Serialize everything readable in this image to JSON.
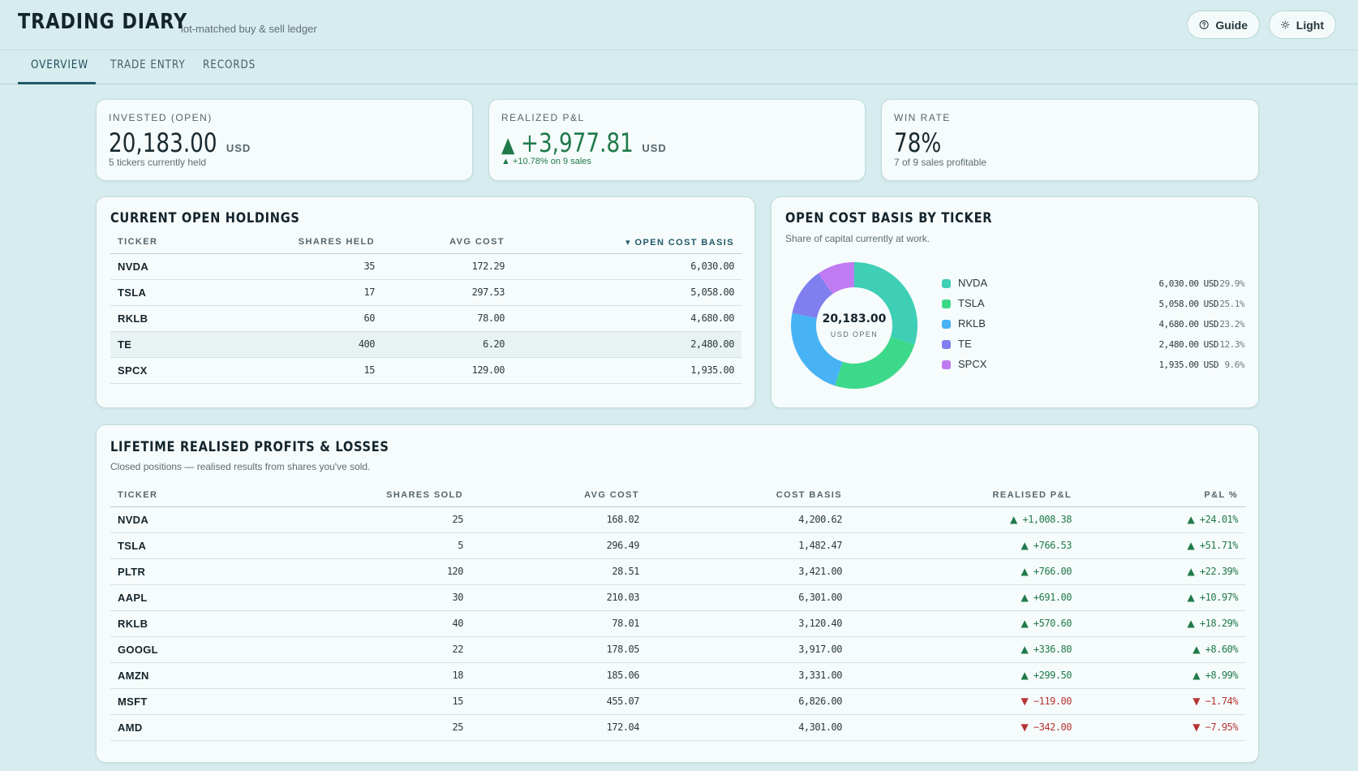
{
  "app": {
    "title": "TRADING DIARY",
    "subtitle": "lot-matched buy & sell ledger"
  },
  "header_buttons": {
    "guide": "Guide",
    "theme": "Light"
  },
  "tabs": [
    {
      "label": "OVERVIEW",
      "active": true
    },
    {
      "label": "TRADE ENTRY",
      "active": false
    },
    {
      "label": "RECORDS",
      "active": false
    }
  ],
  "kpis": {
    "invested": {
      "label": "INVESTED (OPEN)",
      "value": "20,183.00",
      "unit": "USD",
      "sub": "5 tickers currently held"
    },
    "realized": {
      "label": "REALIZED P&L",
      "arrow": "▲",
      "value": "+3,977.81",
      "unit": "USD",
      "sub_arrow": "▲",
      "sub": "+10.78% on 9 sales"
    },
    "winrate": {
      "label": "WIN RATE",
      "value": "78%",
      "sub": "7 of 9 sales profitable"
    }
  },
  "holdings": {
    "title": "CURRENT OPEN HOLDINGS",
    "columns": {
      "ticker": "TICKER",
      "shares": "SHARES HELD",
      "avg": "AVG COST",
      "basis": "▾ OPEN COST BASIS"
    },
    "rows": [
      {
        "ticker": "NVDA",
        "shares": "35",
        "avg": "172.29",
        "basis": "6,030.00"
      },
      {
        "ticker": "TSLA",
        "shares": "17",
        "avg": "297.53",
        "basis": "5,058.00"
      },
      {
        "ticker": "RKLB",
        "shares": "60",
        "avg": "78.00",
        "basis": "4,680.00"
      },
      {
        "ticker": "TE",
        "shares": "400",
        "avg": "6.20",
        "basis": "2,480.00"
      },
      {
        "ticker": "SPCX",
        "shares": "15",
        "avg": "129.00",
        "basis": "1,935.00"
      }
    ]
  },
  "basis_chart": {
    "title": "OPEN COST BASIS BY TICKER",
    "subtitle": "Share of capital currently at work.",
    "center_value": "20,183.00",
    "center_label": "USD OPEN"
  },
  "chart_data": {
    "type": "pie",
    "categories": [
      "NVDA",
      "TSLA",
      "RKLB",
      "TE",
      "SPCX"
    ],
    "values": [
      6030.0,
      5058.0,
      4680.0,
      2480.0,
      1935.0
    ],
    "value_labels": [
      "6,030.00 USD",
      "5,058.00 USD",
      "4,680.00 USD",
      "2,480.00 USD",
      "1,935.00 USD"
    ],
    "percents": [
      "29.9%",
      "25.1%",
      "23.2%",
      "12.3%",
      "9.6%"
    ],
    "colors": [
      "#3ecfb6",
      "#3dd98a",
      "#47b3f5",
      "#7f7ff0",
      "#c07af2"
    ],
    "legend": "right"
  },
  "realised": {
    "title": "LIFETIME REALISED PROFITS & LOSSES",
    "subtitle": "Closed positions — realised results from shares you've sold.",
    "columns": {
      "ticker": "TICKER",
      "shares": "SHARES SOLD",
      "avg": "AVG COST",
      "basis": "COST BASIS",
      "pnl": "REALISED P&L",
      "pct": "P&L %"
    },
    "rows": [
      {
        "ticker": "NVDA",
        "shares": "25",
        "avg": "168.02",
        "basis": "4,200.62",
        "pnl": "▲ +1,008.38",
        "pct": "▲ +24.01%",
        "dir": "pos"
      },
      {
        "ticker": "TSLA",
        "shares": "5",
        "avg": "296.49",
        "basis": "1,482.47",
        "pnl": "▲ +766.53",
        "pct": "▲ +51.71%",
        "dir": "pos"
      },
      {
        "ticker": "PLTR",
        "shares": "120",
        "avg": "28.51",
        "basis": "3,421.00",
        "pnl": "▲ +766.00",
        "pct": "▲ +22.39%",
        "dir": "pos"
      },
      {
        "ticker": "AAPL",
        "shares": "30",
        "avg": "210.03",
        "basis": "6,301.00",
        "pnl": "▲ +691.00",
        "pct": "▲ +10.97%",
        "dir": "pos"
      },
      {
        "ticker": "RKLB",
        "shares": "40",
        "avg": "78.01",
        "basis": "3,120.40",
        "pnl": "▲ +570.60",
        "pct": "▲ +18.29%",
        "dir": "pos"
      },
      {
        "ticker": "GOOGL",
        "shares": "22",
        "avg": "178.05",
        "basis": "3,917.00",
        "pnl": "▲ +336.80",
        "pct": "▲ +8.60%",
        "dir": "pos"
      },
      {
        "ticker": "AMZN",
        "shares": "18",
        "avg": "185.06",
        "basis": "3,331.00",
        "pnl": "▲ +299.50",
        "pct": "▲ +8.99%",
        "dir": "pos"
      },
      {
        "ticker": "MSFT",
        "shares": "15",
        "avg": "455.07",
        "basis": "6,826.00",
        "pnl": "▼ −119.00",
        "pct": "▼ −1.74%",
        "dir": "neg"
      },
      {
        "ticker": "AMD",
        "shares": "25",
        "avg": "172.04",
        "basis": "4,301.00",
        "pnl": "▼ −342.00",
        "pct": "▼ −7.95%",
        "dir": "neg"
      }
    ]
  }
}
